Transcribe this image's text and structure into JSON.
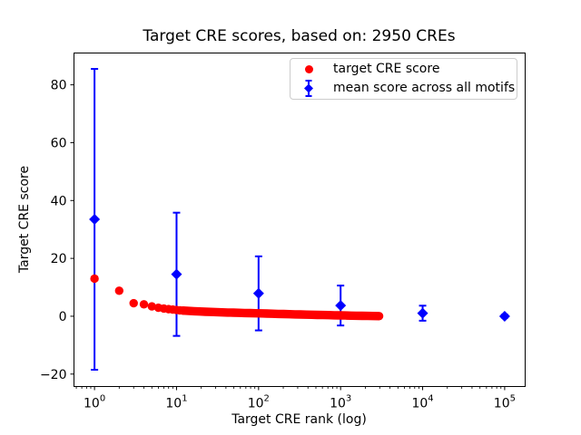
{
  "chart_data": {
    "type": "scatter",
    "title": "Target CRE scores, based on: 2950 CREs",
    "xlabel": "Target CRE rank (log)",
    "ylabel": "Target CRE score",
    "x_scale": "log",
    "grid": false,
    "xlim": [
      0.562,
      177828
    ],
    "ylim": [
      -24.3,
      91.0
    ],
    "x_ticks": [
      {
        "value": 1,
        "base": "10",
        "exp": "0"
      },
      {
        "value": 10,
        "base": "10",
        "exp": "1"
      },
      {
        "value": 100,
        "base": "10",
        "exp": "2"
      },
      {
        "value": 1000,
        "base": "10",
        "exp": "3"
      },
      {
        "value": 10000,
        "base": "10",
        "exp": "4"
      },
      {
        "value": 100000,
        "base": "10",
        "exp": "5"
      }
    ],
    "x_minor_ticks": true,
    "y_ticks": [
      {
        "value": -20,
        "label": "−20"
      },
      {
        "value": 0,
        "label": "0"
      },
      {
        "value": 20,
        "label": "20"
      },
      {
        "value": 40,
        "label": "40"
      },
      {
        "value": 60,
        "label": "60"
      },
      {
        "value": 80,
        "label": "80"
      }
    ],
    "legend": {
      "position": "upper right",
      "entries": [
        {
          "label": "target CRE score",
          "marker": "circle",
          "color": "#ff0000"
        },
        {
          "label": "mean score across all motifs",
          "marker": "diamond-errorbar",
          "color": "#0000ff"
        }
      ]
    },
    "series": [
      {
        "name": "target CRE score",
        "type": "scatter",
        "marker": "circle",
        "color": "#ff0000",
        "n_points": 2950,
        "points_sampled": [
          [
            1,
            13.0
          ],
          [
            2,
            8.8
          ],
          [
            3,
            4.5
          ],
          [
            4,
            4.1
          ],
          [
            5,
            3.4
          ],
          [
            6,
            2.95
          ],
          [
            7,
            2.65
          ],
          [
            8,
            2.45
          ],
          [
            9,
            2.3
          ],
          [
            10,
            2.15
          ],
          [
            12,
            1.95
          ],
          [
            15,
            1.8
          ],
          [
            20,
            1.62
          ],
          [
            25,
            1.5
          ],
          [
            30,
            1.42
          ],
          [
            40,
            1.3
          ],
          [
            50,
            1.22
          ],
          [
            70,
            1.1
          ],
          [
            100,
            1.0
          ],
          [
            140,
            0.88
          ],
          [
            200,
            0.76
          ],
          [
            300,
            0.62
          ],
          [
            400,
            0.53
          ],
          [
            500,
            0.47
          ],
          [
            700,
            0.38
          ],
          [
            1000,
            0.28
          ],
          [
            1400,
            0.2
          ],
          [
            2000,
            0.13
          ],
          [
            2500,
            0.08
          ],
          [
            2950,
            0.05
          ]
        ]
      },
      {
        "name": "mean score across all motifs",
        "type": "errorbar",
        "marker": "diamond",
        "color": "#0000ff",
        "points": [
          {
            "x": 1,
            "y": 33.5,
            "err": 52.0
          },
          {
            "x": 10,
            "y": 14.5,
            "err": 21.3
          },
          {
            "x": 100,
            "y": 7.9,
            "err": 12.8
          },
          {
            "x": 1000,
            "y": 3.7,
            "err": 6.9
          },
          {
            "x": 10000,
            "y": 1.05,
            "err": 2.6
          },
          {
            "x": 100000,
            "y": 0.0,
            "err": 0.5
          }
        ]
      }
    ]
  }
}
